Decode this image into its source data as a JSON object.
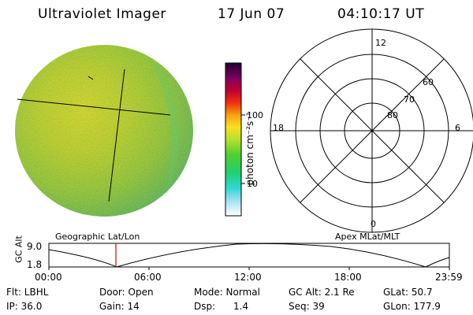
{
  "header": {
    "instrument": "Ultraviolet Imager",
    "date": "17 Jun 07",
    "time": "04:10:17 UT"
  },
  "colorbar": {
    "label": "photon cm⁻²s⁻¹",
    "ticks": [
      "100",
      "10"
    ]
  },
  "polar_plot": {
    "mlt_labels": {
      "top": "12",
      "left": "18",
      "right": "6",
      "bottom": "0"
    },
    "lat_labels": [
      "60",
      "70",
      "80"
    ]
  },
  "footer_titles": {
    "left": "Geographic Lat/Lon",
    "right": "Apex MLat/MLT"
  },
  "altitude_strip": {
    "axis_label": "GC Alt",
    "y_ticks": [
      "9.0",
      "1.8"
    ],
    "x_ticks": [
      "00:00",
      "06:00",
      "12:00",
      "18:00",
      "23:59"
    ],
    "marker_color": "#e00000"
  },
  "info": {
    "flt": "Flt: LBHL",
    "door": "Door: Open",
    "mode": "Mode: Normal",
    "gc_alt": "GC Alt: 2.1 Re",
    "glat": "GLat:  50.7",
    "ip": "IP: 36.0",
    "gain": "Gain: 14",
    "dsp": "Dsp:      1.4",
    "seq": "Seq: 39",
    "glon": "GLon: 177.9"
  }
}
